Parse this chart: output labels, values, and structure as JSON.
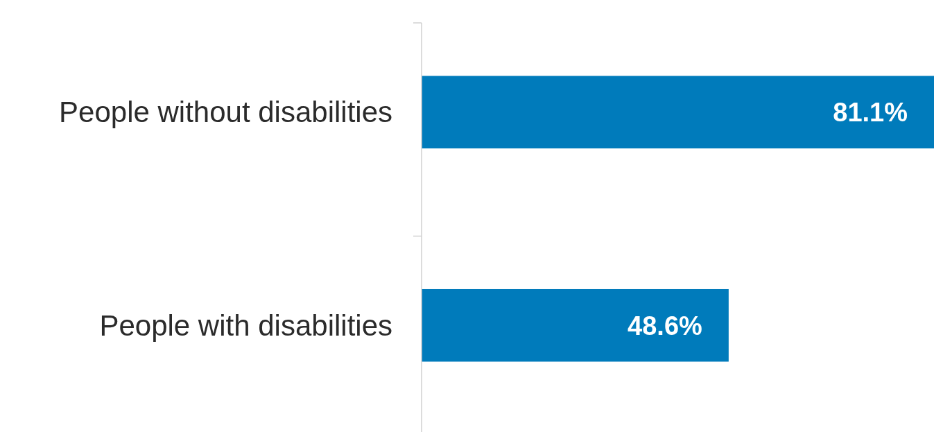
{
  "chart_data": {
    "type": "bar",
    "orientation": "horizontal",
    "categories": [
      "People without disabilities",
      "People with disabilities"
    ],
    "values": [
      81.1,
      48.6
    ],
    "color": "#007bbb",
    "data_labels": true,
    "value_labels": [
      "81.1%",
      "48.6%"
    ]
  }
}
